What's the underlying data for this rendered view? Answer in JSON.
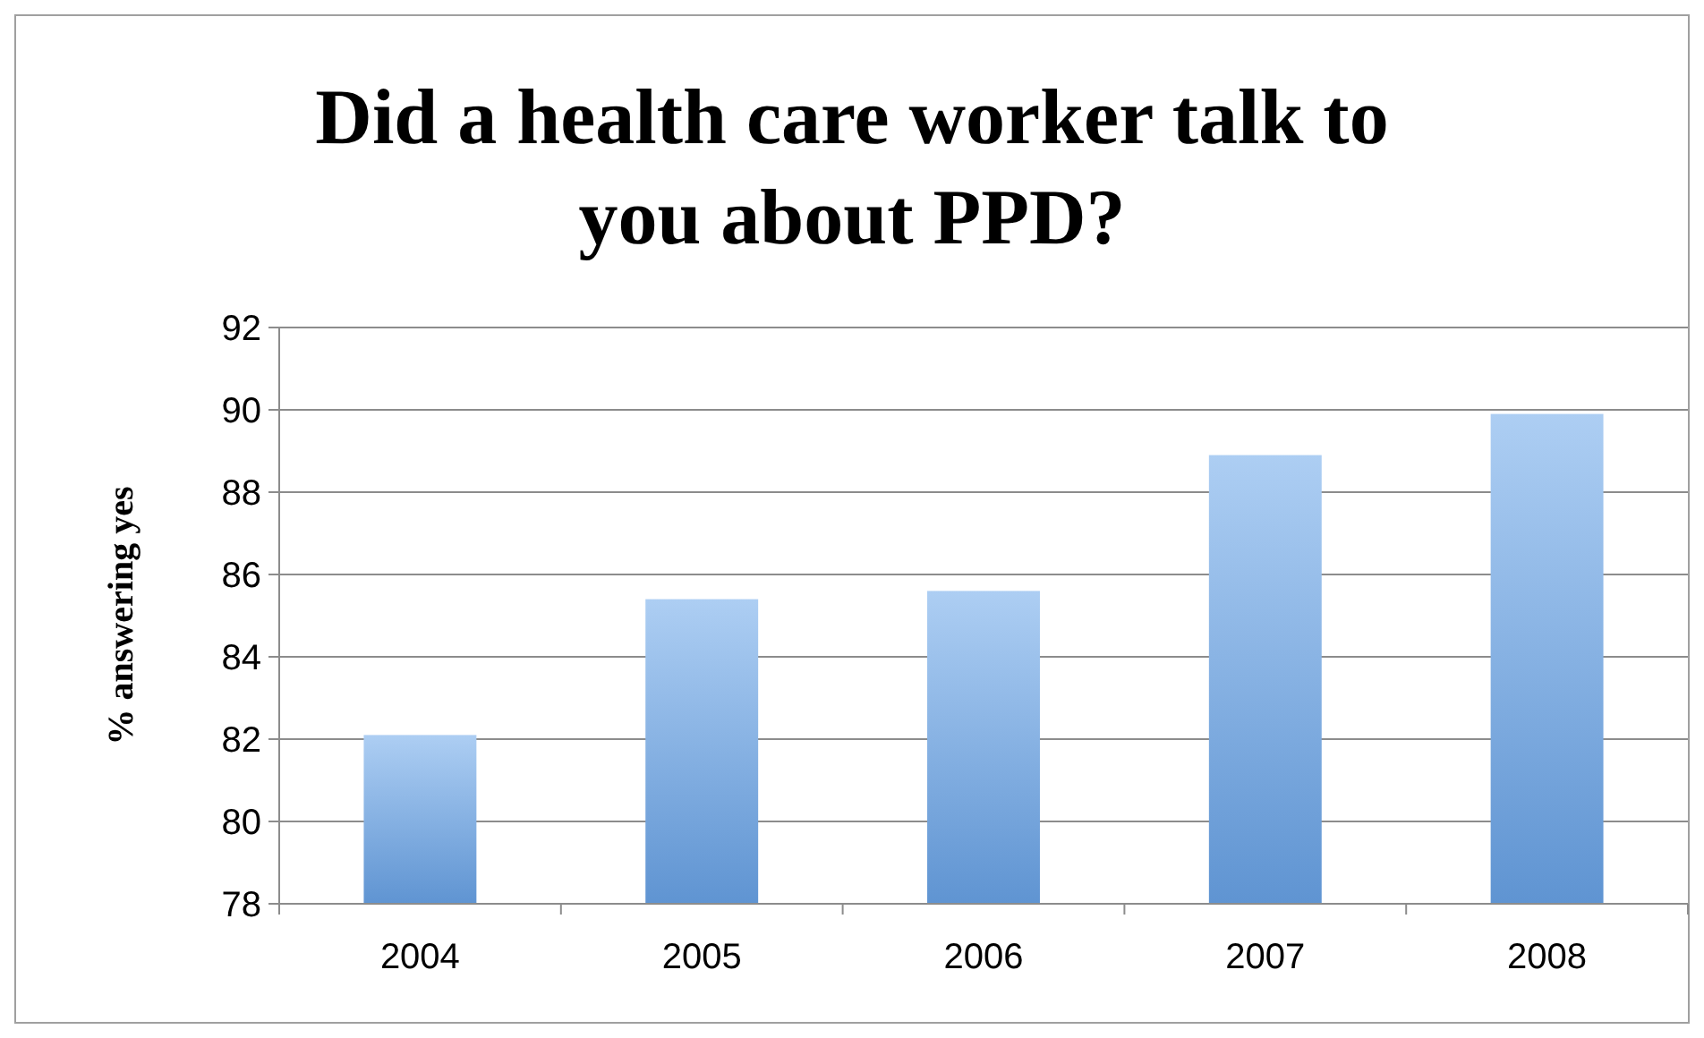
{
  "chart_data": {
    "type": "bar",
    "title": "Did a health care worker talk to you about PPD?",
    "ylabel": "% answering yes",
    "categories": [
      "2004",
      "2005",
      "2006",
      "2007",
      "2008"
    ],
    "values": [
      82.1,
      85.4,
      85.6,
      88.9,
      89.9
    ],
    "color": "#6aa5ea",
    "ylim": [
      78,
      92
    ],
    "yticks": [
      78,
      80,
      82,
      84,
      86,
      88,
      90,
      92
    ],
    "grid": "y"
  }
}
